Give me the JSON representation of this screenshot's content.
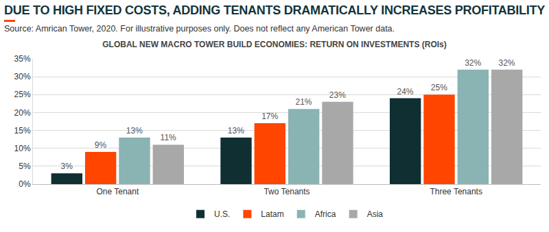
{
  "chart_data": {
    "type": "bar",
    "title": "DUE TO HIGH FIXED COSTS, ADDING TENANTS DRAMATICALLY INCREASES PROFITABILITY",
    "subtitle": "Source: Amrican Tower, 2020. For illustrative purposes only. Does not reflect any American Tower data.",
    "chart_title": "GLOBAL NEW MACRO TOWER BUILD ECONOMIES: RETURN ON INVESTMENTS (ROIs)",
    "categories": [
      "One Tenant",
      "Two Tenants",
      "Three Tenants"
    ],
    "series": [
      {
        "name": "U.S.",
        "color": "#0f2f33",
        "values": [
          3,
          13,
          24
        ],
        "value_labels": [
          "3%",
          "13%",
          "24%"
        ]
      },
      {
        "name": "Latam",
        "color": "#ff4500",
        "values": [
          9,
          17,
          25
        ],
        "value_labels": [
          "9%",
          "17%",
          "25%"
        ]
      },
      {
        "name": "Africa",
        "color": "#8ab3b3",
        "values": [
          13,
          21,
          32
        ],
        "value_labels": [
          "13%",
          "21%",
          "32%"
        ]
      },
      {
        "name": "Asia",
        "color": "#a8a8a8",
        "values": [
          11,
          23,
          32
        ],
        "value_labels": [
          "11%",
          "23%",
          "32%"
        ]
      }
    ],
    "ylim": [
      0,
      35
    ],
    "yticks": [
      {
        "value": 0,
        "label": "0%"
      },
      {
        "value": 5,
        "label": "5%"
      },
      {
        "value": 10,
        "label": "10%"
      },
      {
        "value": 15,
        "label": "15%"
      },
      {
        "value": 20,
        "label": "20%"
      },
      {
        "value": 25,
        "label": "25%"
      },
      {
        "value": 30,
        "label": "30%"
      },
      {
        "value": 35,
        "label": "35%"
      }
    ],
    "grid": true,
    "legend": "bottom",
    "data_labels": true
  }
}
